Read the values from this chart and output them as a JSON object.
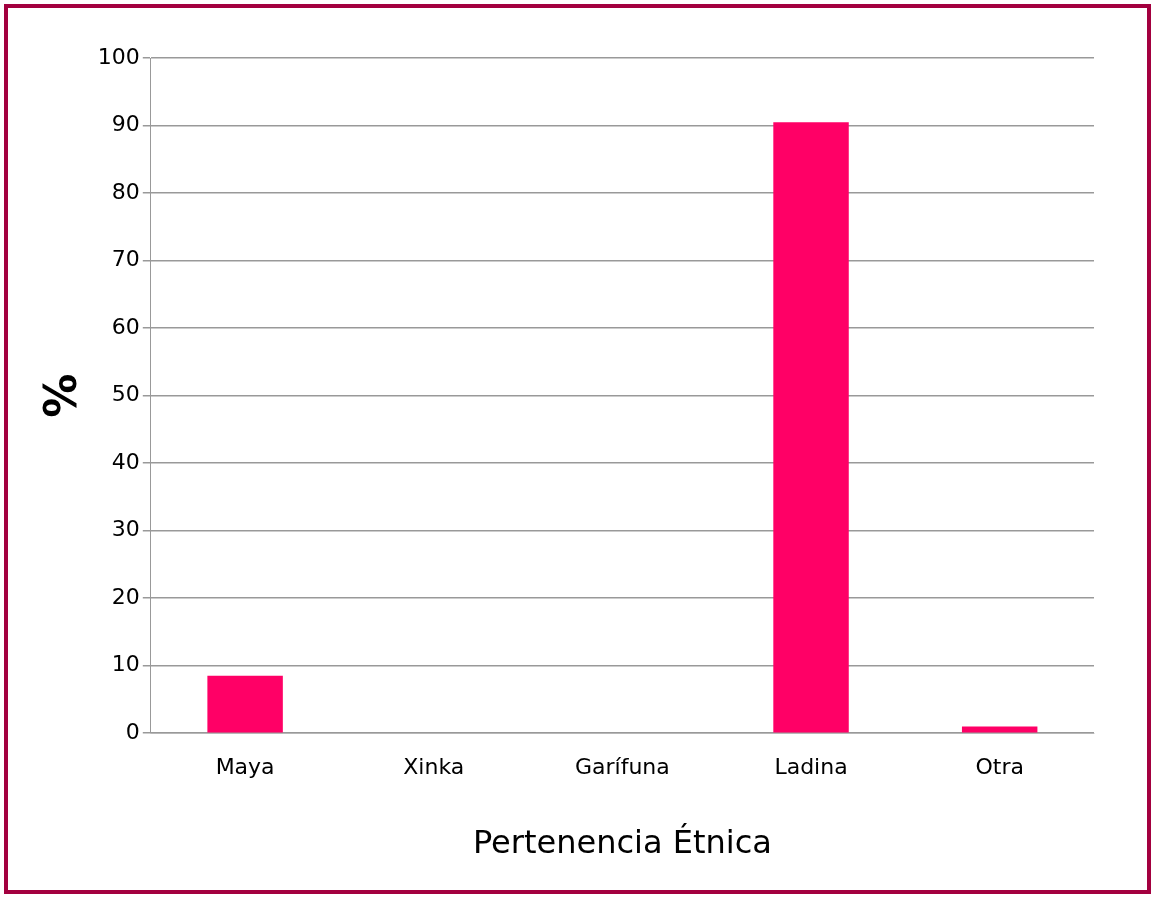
{
  "chart_data": {
    "type": "bar",
    "xlabel": "Pertenencia Étnica",
    "ylabel": "%",
    "categories": [
      "Maya",
      "Xinka",
      "Garífuna",
      "Ladina",
      "Otra"
    ],
    "values": [
      8.5,
      0,
      0,
      90.5,
      1
    ],
    "color": "#ff0066",
    "ylim": [
      0,
      100
    ],
    "yticks": [
      0,
      10,
      20,
      30,
      40,
      50,
      60,
      70,
      80,
      90,
      100
    ],
    "grid": "y",
    "legend": false
  }
}
